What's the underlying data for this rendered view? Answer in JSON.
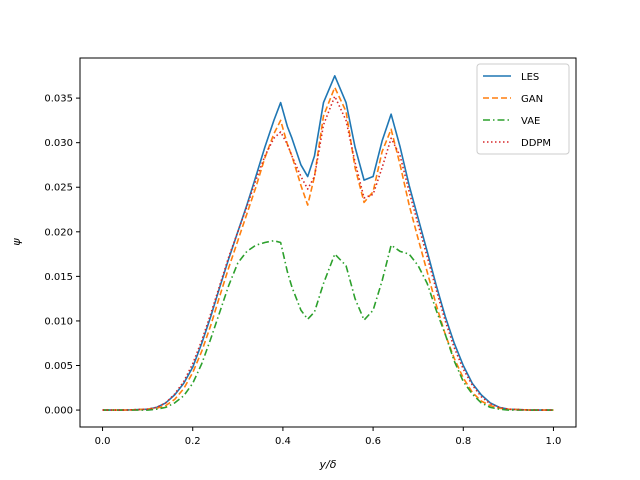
{
  "chart_data": {
    "type": "line",
    "xlabel": "y/δ",
    "ylabel": "ψ",
    "xlim": [
      -0.05,
      1.05
    ],
    "ylim": [
      -0.0019,
      0.0395
    ],
    "x_ticks": [
      0.0,
      0.2,
      0.4,
      0.6,
      0.8,
      1.0
    ],
    "x_tick_labels": [
      "0.0",
      "0.2",
      "0.4",
      "0.6",
      "0.8",
      "1.0"
    ],
    "y_ticks": [
      0.0,
      0.005,
      0.01,
      0.015,
      0.02,
      0.025,
      0.03,
      0.035
    ],
    "y_tick_labels": [
      "0.000",
      "0.005",
      "0.010",
      "0.015",
      "0.020",
      "0.025",
      "0.030",
      "0.035"
    ],
    "grid": false,
    "legend_position": "top-right",
    "x": [
      0.0,
      0.05,
      0.1,
      0.12,
      0.14,
      0.16,
      0.18,
      0.2,
      0.22,
      0.24,
      0.26,
      0.28,
      0.3,
      0.32,
      0.34,
      0.36,
      0.38,
      0.395,
      0.41,
      0.42,
      0.44,
      0.455,
      0.47,
      0.49,
      0.515,
      0.54,
      0.56,
      0.58,
      0.6,
      0.62,
      0.64,
      0.66,
      0.68,
      0.7,
      0.72,
      0.74,
      0.76,
      0.78,
      0.8,
      0.82,
      0.84,
      0.86,
      0.88,
      0.9,
      0.95,
      1.0
    ],
    "series": [
      {
        "name": "LES",
        "color": "#1f77b4",
        "dash": "solid",
        "values": [
          0.0,
          0.0,
          0.0001,
          0.0003,
          0.0008,
          0.0017,
          0.003,
          0.0048,
          0.0075,
          0.0105,
          0.0138,
          0.017,
          0.02,
          0.023,
          0.0262,
          0.0295,
          0.0325,
          0.0345,
          0.0318,
          0.0305,
          0.0275,
          0.0262,
          0.0285,
          0.0345,
          0.0375,
          0.0345,
          0.0295,
          0.0258,
          0.0262,
          0.0302,
          0.0332,
          0.0295,
          0.0252,
          0.0215,
          0.0178,
          0.014,
          0.0105,
          0.0075,
          0.005,
          0.003,
          0.0017,
          0.0008,
          0.0003,
          0.0001,
          0.0,
          0.0
        ]
      },
      {
        "name": "GAN",
        "color": "#ff7f0e",
        "dash": "dashed",
        "values": [
          0.0,
          0.0,
          0.0001,
          0.0002,
          0.0005,
          0.0012,
          0.0024,
          0.0042,
          0.0066,
          0.0095,
          0.0128,
          0.016,
          0.019,
          0.022,
          0.025,
          0.0283,
          0.031,
          0.0325,
          0.0298,
          0.0285,
          0.0252,
          0.023,
          0.0262,
          0.033,
          0.0362,
          0.0335,
          0.0272,
          0.0233,
          0.0245,
          0.029,
          0.0315,
          0.0275,
          0.023,
          0.0192,
          0.0155,
          0.0118,
          0.0085,
          0.0058,
          0.0036,
          0.002,
          0.001,
          0.0005,
          0.0002,
          0.0001,
          0.0,
          0.0
        ]
      },
      {
        "name": "VAE",
        "color": "#2ca02c",
        "dash": "dashdot",
        "values": [
          0.0,
          0.0,
          0.0,
          0.0001,
          0.0003,
          0.0008,
          0.0016,
          0.003,
          0.0052,
          0.008,
          0.011,
          0.014,
          0.0165,
          0.0178,
          0.0185,
          0.0188,
          0.019,
          0.0188,
          0.0155,
          0.0138,
          0.0112,
          0.0102,
          0.011,
          0.0142,
          0.0175,
          0.0162,
          0.0125,
          0.0101,
          0.0112,
          0.0145,
          0.0185,
          0.0178,
          0.0175,
          0.0162,
          0.0142,
          0.0112,
          0.0085,
          0.0055,
          0.0032,
          0.0018,
          0.0008,
          0.0003,
          0.0001,
          0.0,
          0.0,
          0.0
        ]
      },
      {
        "name": "DDPM",
        "color": "#d62728",
        "dash": "dotted",
        "values": [
          0.0,
          0.0,
          0.0001,
          0.0003,
          0.0008,
          0.0018,
          0.0032,
          0.0052,
          0.0078,
          0.0108,
          0.014,
          0.0172,
          0.02,
          0.0228,
          0.0258,
          0.0285,
          0.0305,
          0.0312,
          0.0298,
          0.0285,
          0.0262,
          0.0248,
          0.0262,
          0.032,
          0.0352,
          0.0325,
          0.0278,
          0.0238,
          0.0242,
          0.0272,
          0.0305,
          0.0285,
          0.0245,
          0.0208,
          0.0172,
          0.0135,
          0.01,
          0.007,
          0.0046,
          0.0028,
          0.0015,
          0.0007,
          0.0003,
          0.0001,
          0.0,
          0.0
        ]
      }
    ]
  }
}
